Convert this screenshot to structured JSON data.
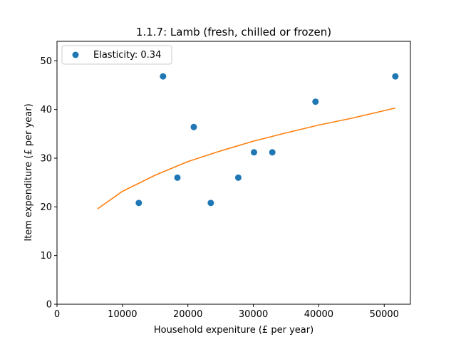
{
  "chart_data": {
    "type": "scatter",
    "title": "1.1.7: Lamb (fresh, chilled or frozen)",
    "xlabel": "Household expeniture (£ per year)",
    "ylabel": "Item expenditure (£ per year)",
    "xlim": [
      0,
      54000
    ],
    "ylim": [
      0,
      54
    ],
    "xticks": [
      0,
      10000,
      20000,
      30000,
      40000,
      50000
    ],
    "yticks": [
      0,
      10,
      20,
      30,
      40,
      50
    ],
    "grid": false,
    "legend_position": "upper-left",
    "series": [
      {
        "name": "Elasticity: 0.34",
        "kind": "points",
        "color": "#1f77b4",
        "x": [
          12500,
          16200,
          18400,
          20900,
          23500,
          27700,
          30100,
          32900,
          39500,
          51700
        ],
        "y": [
          20.8,
          46.8,
          26.0,
          36.4,
          20.8,
          26.0,
          31.2,
          31.2,
          41.6,
          46.8
        ]
      },
      {
        "kind": "fit-curve",
        "color": "#ff7f0e",
        "x": [
          6200,
          10000,
          15000,
          20000,
          25000,
          30000,
          35000,
          40000,
          45000,
          51700
        ],
        "y": [
          19.6,
          23.2,
          26.5,
          29.3,
          31.5,
          33.5,
          35.2,
          36.8,
          38.2,
          40.3
        ]
      }
    ]
  }
}
